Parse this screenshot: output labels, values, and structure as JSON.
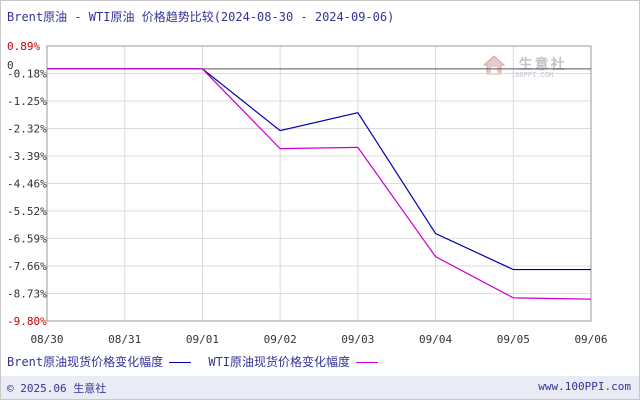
{
  "title": "Brent原油 - WTI原油 价格趋势比较(2024-08-30 - 2024-09-06)",
  "watermark": {
    "name": "生意社",
    "url": "100PPI.COM"
  },
  "footer": {
    "copyright": "© 2025.06 生意社",
    "site": "www.100PPI.com"
  },
  "chart_data": {
    "type": "line",
    "title": "Brent原油 - WTI原油 价格趋势比较(2024-08-30 - 2024-09-06)",
    "x": [
      "08/30",
      "08/31",
      "09/01",
      "09/02",
      "09/03",
      "09/04",
      "09/05",
      "09/06"
    ],
    "y_ticks": [
      "0.89%",
      "-0.18%",
      "-1.25%",
      "-2.32%",
      "-3.39%",
      "-4.46%",
      "-5.52%",
      "-6.59%",
      "-7.66%",
      "-8.73%",
      "-9.80%"
    ],
    "zero_label": "0",
    "ylim": [
      -9.8,
      0.89
    ],
    "grid": true,
    "legend_position": "bottom",
    "series": [
      {
        "name": "Brent原油现货价格变化幅度",
        "color": "#0000aa",
        "values": [
          0,
          0,
          0,
          -2.4,
          -1.7,
          -6.4,
          -7.8,
          -7.8
        ]
      },
      {
        "name": "WTI原油现货价格变化幅度",
        "color": "#cc00cc",
        "values": [
          0,
          0,
          0,
          -3.1,
          -3.05,
          -7.3,
          -8.9,
          -8.95
        ]
      }
    ]
  }
}
